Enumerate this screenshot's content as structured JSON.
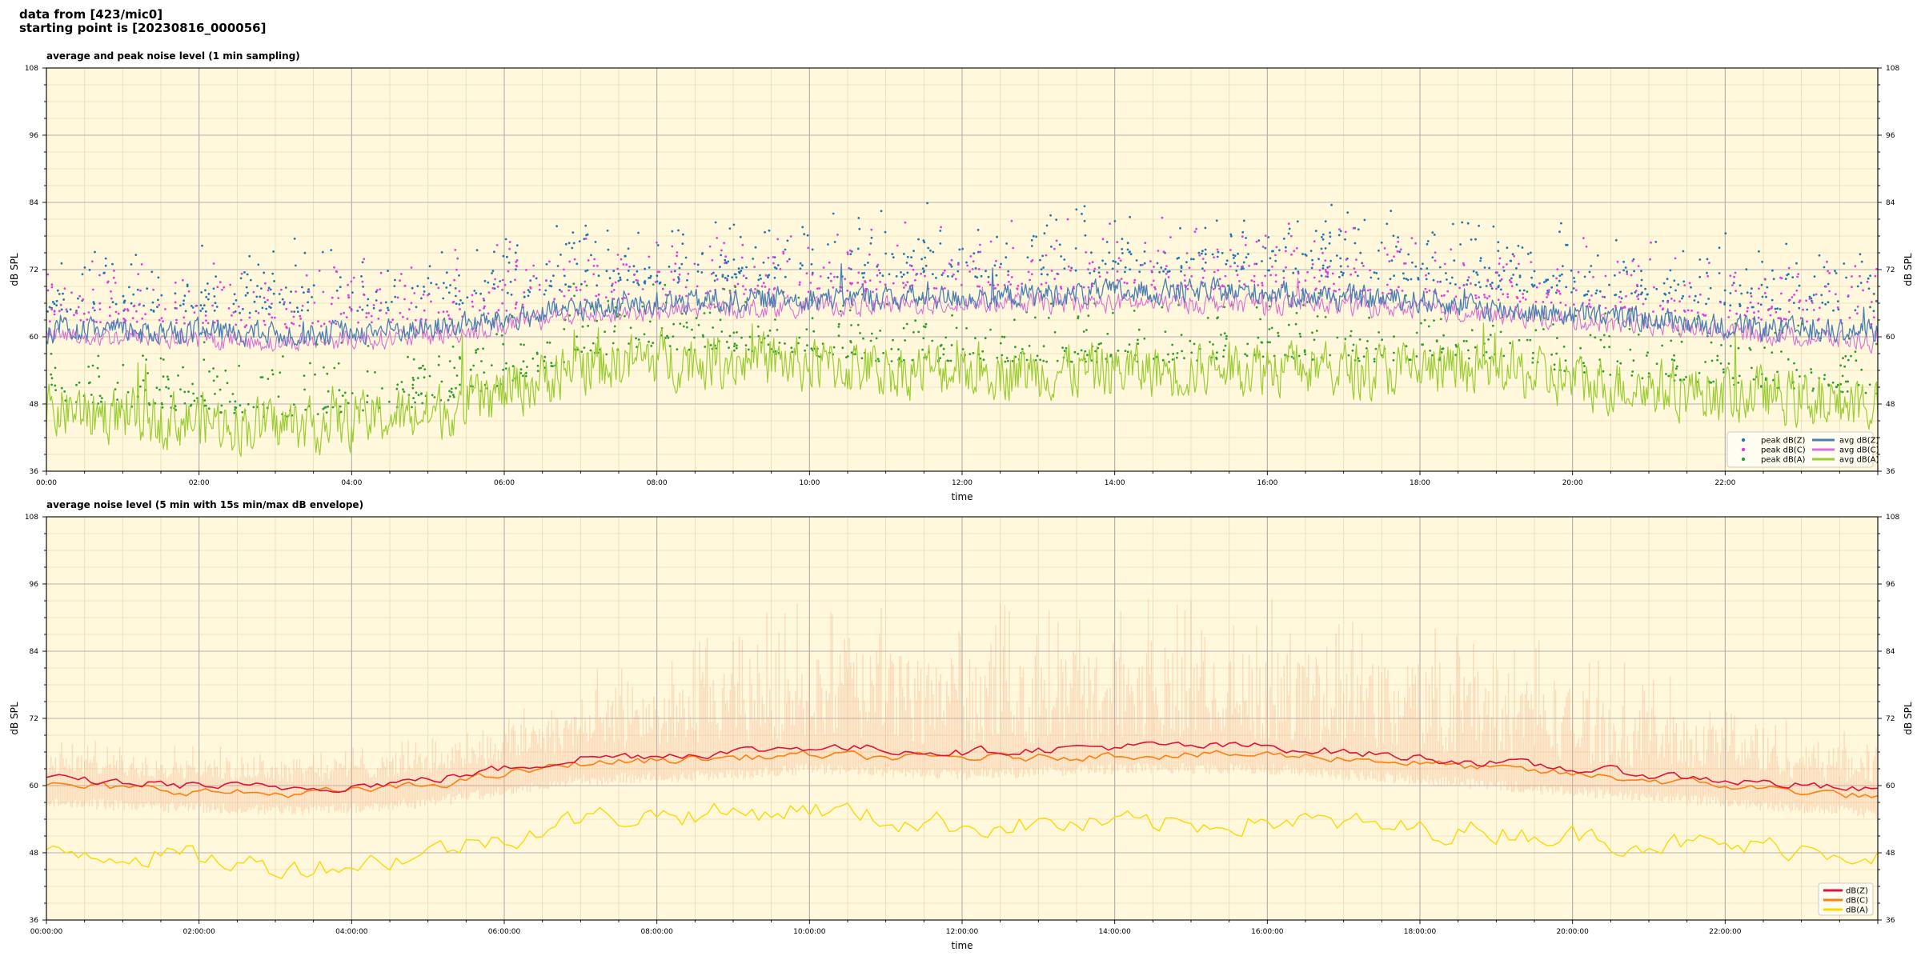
{
  "header": {
    "line1": "data from [423/mic0]",
    "line2": "starting point is [20230816_000056]"
  },
  "colors": {
    "plot_bg": "#fff8dc",
    "peak_z": "#1f77b4",
    "peak_c": "#e040e0",
    "peak_a": "#2ca02c",
    "avg_z": "#4a7fb5",
    "avg_c": "#da70d6",
    "avg_a": "#9acd32",
    "env_z": "#dc143c",
    "env_c": "#ff7f0e",
    "env_a": "#ffd700",
    "envelope_fill": "#f4a582"
  },
  "chart_data": [
    {
      "type": "line",
      "title": "average and peak noise level (1 min sampling)",
      "xlabel": "time",
      "ylabel": "dB SPL",
      "xlim_hours": [
        0,
        24
      ],
      "ylim": [
        36,
        108
      ],
      "yticks": [
        36,
        48,
        60,
        72,
        84,
        96,
        108
      ],
      "xtick_labels": [
        "00:00",
        "02:00",
        "04:00",
        "06:00",
        "08:00",
        "10:00",
        "12:00",
        "14:00",
        "16:00",
        "18:00",
        "20:00",
        "22:00"
      ],
      "grid": true,
      "legend_position": "lower-right",
      "legend": [
        {
          "label": "peak dB(Z)",
          "kind": "dot",
          "color_key": "peak_z"
        },
        {
          "label": "peak dB(C)",
          "kind": "dot",
          "color_key": "peak_c"
        },
        {
          "label": "peak dB(A)",
          "kind": "dot",
          "color_key": "peak_a"
        },
        {
          "label": "avg dB(Z)",
          "kind": "line",
          "color_key": "avg_z"
        },
        {
          "label": "avg dB(C)",
          "kind": "line",
          "color_key": "avg_c"
        },
        {
          "label": "avg dB(A)",
          "kind": "line",
          "color_key": "avg_a"
        }
      ],
      "x_hours": [
        0,
        1,
        2,
        3,
        4,
        5,
        6,
        7,
        8,
        9,
        10,
        11,
        12,
        13,
        14,
        15,
        16,
        17,
        18,
        19,
        20,
        21,
        22,
        23,
        24
      ],
      "series": [
        {
          "name": "avg dB(Z)",
          "values": [
            61,
            61,
            61,
            60.5,
            61,
            61.5,
            63,
            65,
            66,
            66.5,
            67,
            67,
            67,
            67.5,
            68,
            68,
            68,
            67,
            66.5,
            65,
            64,
            63,
            62,
            61,
            61
          ]
        },
        {
          "name": "avg dB(C)",
          "values": [
            60,
            60,
            59.5,
            59,
            59.5,
            60,
            62,
            64,
            64.5,
            65,
            65.5,
            65.5,
            66,
            66,
            66,
            66,
            66,
            65.5,
            65,
            64,
            63,
            62,
            61,
            60,
            59
          ]
        },
        {
          "name": "avg dB(A)",
          "values": [
            47,
            46,
            45,
            44,
            45,
            46,
            50,
            55,
            56,
            56,
            55,
            54,
            54,
            54,
            54,
            54,
            55,
            54,
            54,
            54,
            52,
            51,
            50,
            49,
            48
          ]
        }
      ]
    },
    {
      "type": "line",
      "title": "average noise level (5 min with 15s min/max dB envelope)",
      "xlabel": "time",
      "ylabel": "dB SPL",
      "xlim_hours": [
        0,
        24
      ],
      "ylim": [
        36,
        108
      ],
      "yticks": [
        36,
        48,
        60,
        72,
        84,
        96,
        108
      ],
      "xtick_labels": [
        "00:00:00",
        "02:00:00",
        "04:00:00",
        "06:00:00",
        "08:00:00",
        "10:00:00",
        "12:00:00",
        "14:00:00",
        "16:00:00",
        "18:00:00",
        "20:00:00",
        "22:00:00"
      ],
      "grid": true,
      "legend_position": "lower-right",
      "legend": [
        {
          "label": "dB(Z)",
          "kind": "line",
          "color_key": "env_z"
        },
        {
          "label": "dB(C)",
          "kind": "line",
          "color_key": "env_c"
        },
        {
          "label": "dB(A)",
          "kind": "line",
          "color_key": "env_a"
        }
      ],
      "x_hours": [
        0,
        1,
        2,
        3,
        4,
        5,
        6,
        7,
        8,
        9,
        10,
        11,
        12,
        13,
        14,
        15,
        16,
        17,
        18,
        19,
        20,
        21,
        22,
        23,
        24
      ],
      "series": [
        {
          "name": "dB(Z)",
          "values": [
            61,
            60.5,
            60,
            59.5,
            60,
            61,
            63,
            65,
            65.5,
            66,
            67,
            66.5,
            66,
            66.5,
            67,
            67,
            67,
            66,
            65,
            64,
            63,
            62,
            61,
            60,
            59
          ]
        },
        {
          "name": "dB(C)",
          "values": [
            60,
            59.5,
            59,
            58.5,
            59,
            60,
            62,
            64,
            64.5,
            65,
            65.5,
            65,
            65,
            65,
            65.5,
            65.5,
            65.5,
            65,
            64,
            63,
            62,
            61,
            60,
            59,
            58
          ]
        },
        {
          "name": "dB(A)",
          "values": [
            49,
            48,
            47,
            45.5,
            46,
            48,
            51,
            54,
            55,
            55,
            56,
            54,
            53,
            53,
            53,
            53,
            54,
            53,
            52,
            52,
            51,
            50,
            49,
            49,
            48
          ]
        }
      ]
    }
  ]
}
